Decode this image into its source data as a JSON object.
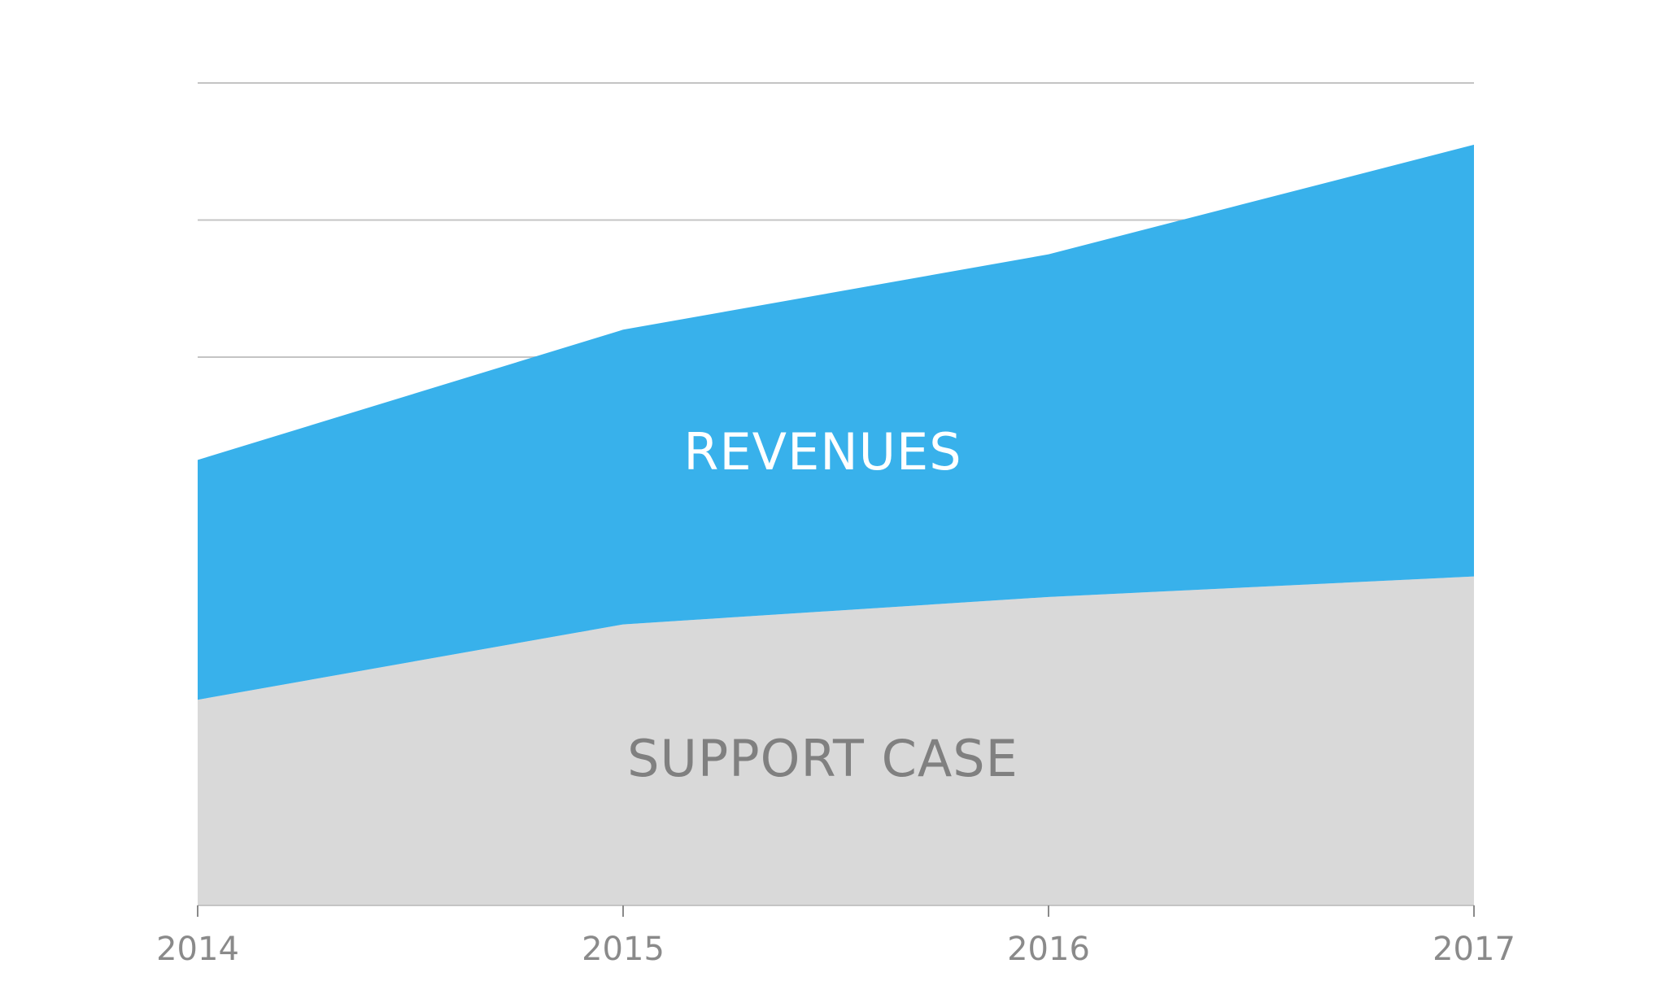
{
  "chart_data": {
    "type": "area",
    "stacked": true,
    "x": [
      "2014",
      "2015",
      "2016",
      "2017"
    ],
    "series": [
      {
        "name": "SUPPORT CASE",
        "values": [
          1.5,
          2.05,
          2.25,
          2.4
        ],
        "color": "#d9d9d9",
        "label_color": "#808080"
      },
      {
        "name": "REVENUES",
        "values": [
          1.75,
          2.15,
          2.5,
          3.15
        ],
        "color": "#38b1eb",
        "label_color": "#ffffff"
      }
    ],
    "ylim": [
      0,
      6
    ],
    "y_gridlines": [
      1,
      2,
      3,
      4,
      5,
      6
    ],
    "grid": true,
    "grid_color": "#c4c4c4",
    "axis_color": "#c4c4c4",
    "tick_color": "#8a8a8a"
  }
}
